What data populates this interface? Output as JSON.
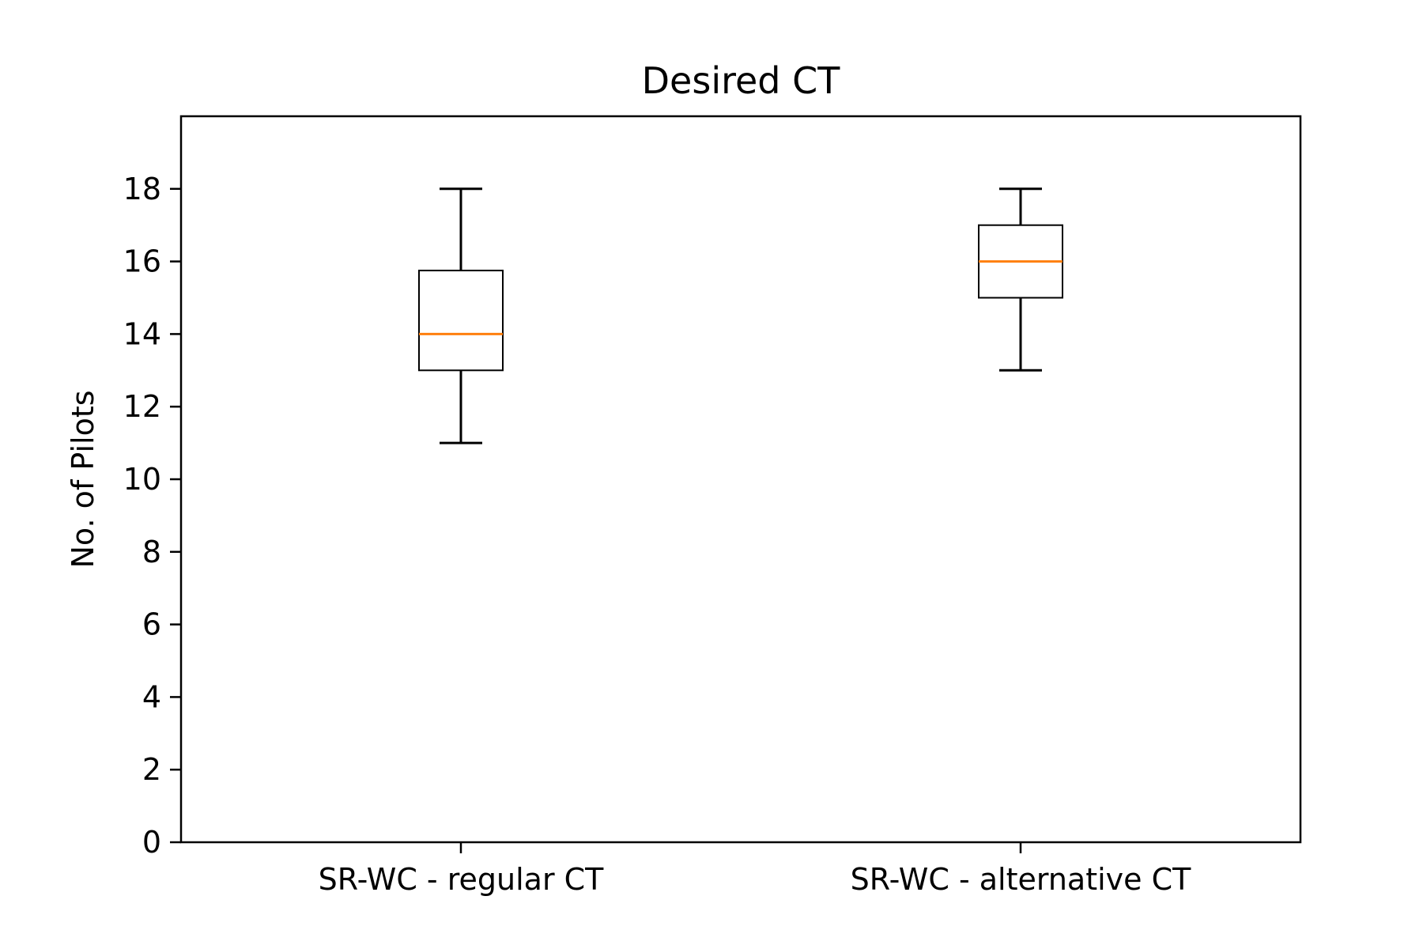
{
  "chart_data": {
    "type": "boxplot",
    "title": "Desired CT",
    "xlabel": "",
    "ylabel": "No. of Pilots",
    "ylim": [
      0,
      20
    ],
    "yticks": [
      0,
      2,
      4,
      6,
      8,
      10,
      12,
      14,
      16,
      18
    ],
    "grid": false,
    "categories": [
      "SR-WC - regular CT",
      "SR-WC - alternative CT"
    ],
    "boxes": [
      {
        "category": "SR-WC - regular CT",
        "whisker_low": 11,
        "q1": 13,
        "median": 14,
        "q3": 15.75,
        "whisker_high": 18
      },
      {
        "category": "SR-WC - alternative CT",
        "whisker_low": 13,
        "q1": 15,
        "median": 16,
        "q3": 17,
        "whisker_high": 18
      }
    ],
    "colors": {
      "median": "#ff7f0e",
      "box": "#000000",
      "whisker": "#000000",
      "axes": "#000000",
      "background": "#ffffff"
    }
  }
}
